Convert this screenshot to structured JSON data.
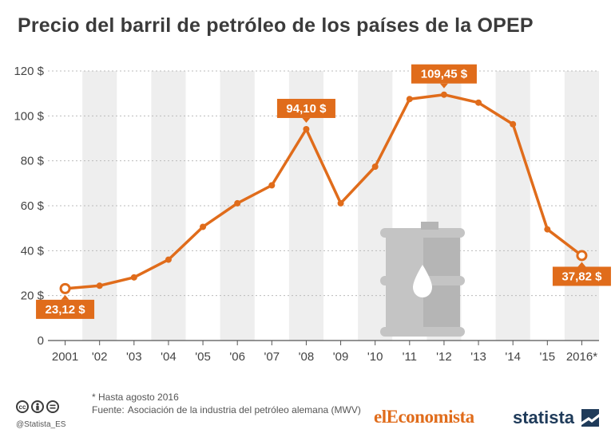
{
  "title": "Precio del barril de petróleo de los países de la OPEP",
  "footer": {
    "note": "* Hasta agosto 2016",
    "source_label": "Fuente:",
    "source_text": "Asociación de la industria del petróleo alemana (MWV)",
    "handle": "@Statista_ES",
    "brand_left": "elEconomista",
    "brand_right": "statista"
  },
  "icons": [
    "cc-icon",
    "by-icon",
    "nd-icon",
    "oil-barrel-icon",
    "statista-logo-icon"
  ],
  "colors": {
    "line": "#e06c1b",
    "band": "#eeeeee",
    "barrel": "#c4c4c4",
    "label_bg": "#e06c1b"
  },
  "chart_data": {
    "type": "line",
    "title": "Precio del barril de petróleo de los países de la OPEP",
    "x": [
      "2001",
      "'02",
      "'03",
      "'04",
      "'05",
      "'06",
      "'07",
      "'08",
      "'09",
      "'10",
      "'11",
      "'12",
      "'13",
      "'14",
      "'15",
      "2016*"
    ],
    "values": [
      23.12,
      24.4,
      28.1,
      36.0,
      50.6,
      61.1,
      69.1,
      94.1,
      61.1,
      77.4,
      107.5,
      109.45,
      105.9,
      96.3,
      49.5,
      37.82
    ],
    "ylim": [
      0,
      120
    ],
    "yticks": [
      0,
      20,
      40,
      60,
      80,
      100,
      120
    ],
    "ytick_labels": [
      "0",
      "20 $",
      "40 $",
      "60 $",
      "80 $",
      "100 $",
      "120 $"
    ],
    "grid": true,
    "data_labels": [
      {
        "index": 0,
        "text": "23,12 $",
        "position": "below",
        "open_marker": true
      },
      {
        "index": 7,
        "text": "94,10 $",
        "position": "above",
        "open_marker": false
      },
      {
        "index": 11,
        "text": "109,45 $",
        "position": "above",
        "open_marker": false
      },
      {
        "index": 15,
        "text": "37,82 $",
        "position": "below",
        "open_marker": true
      }
    ],
    "footnote": "* Hasta agosto 2016"
  }
}
